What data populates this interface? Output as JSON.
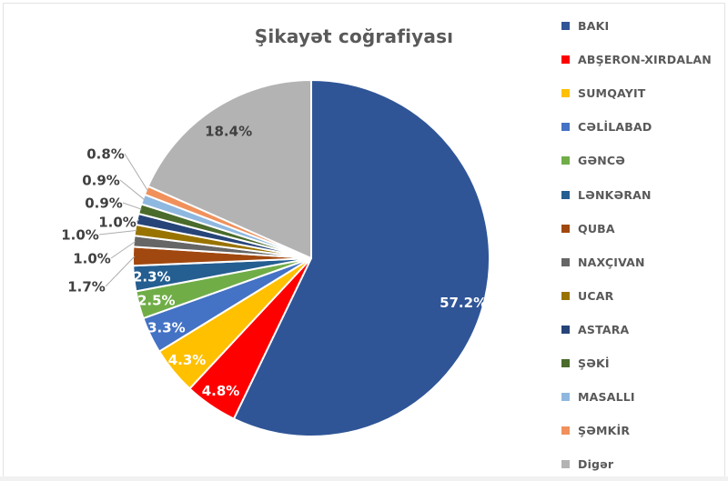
{
  "chart_data": {
    "type": "pie",
    "title": "Şikayət coğrafiyası",
    "legend_position": "right",
    "value_format": "percent-one-decimal",
    "direction": "clockwise",
    "start_angle_deg": 0,
    "slices": [
      {
        "label": "BAKI",
        "value": 57.2,
        "color": "#2F5597",
        "label_placement": "inside"
      },
      {
        "label": "ABŞERON-XIRDALAN",
        "value": 4.8,
        "color": "#FF0000",
        "label_placement": "inside"
      },
      {
        "label": "SUMQAYIT",
        "value": 4.3,
        "color": "#FFC000",
        "label_placement": "inside"
      },
      {
        "label": "CƏLİLABAD",
        "value": 3.3,
        "color": "#4472C4",
        "label_placement": "inside"
      },
      {
        "label": "GƏNCƏ",
        "value": 2.5,
        "color": "#70AD47",
        "label_placement": "inside"
      },
      {
        "label": "LƏNKƏRAN",
        "value": 2.3,
        "color": "#255E91",
        "label_placement": "inside"
      },
      {
        "label": "QUBA",
        "value": 1.7,
        "color": "#A0480F",
        "label_placement": "outside"
      },
      {
        "label": "NAXÇIVAN",
        "value": 1.0,
        "color": "#666666",
        "label_placement": "outside"
      },
      {
        "label": "UCAR",
        "value": 1.0,
        "color": "#997300",
        "label_placement": "outside"
      },
      {
        "label": "ASTARA",
        "value": 1.0,
        "color": "#264478",
        "label_placement": "outside"
      },
      {
        "label": "ŞƏKİ",
        "value": 0.9,
        "color": "#4A6B2B",
        "label_placement": "outside"
      },
      {
        "label": "MASALLI",
        "value": 0.9,
        "color": "#8FB8E0",
        "label_placement": "outside"
      },
      {
        "label": "ŞƏMKİR",
        "value": 0.8,
        "color": "#F0915C",
        "label_placement": "outside"
      },
      {
        "label": "Digər",
        "value": 18.4,
        "color": "#B3B3B3",
        "label_placement": "inside"
      }
    ],
    "visible_value_labels": [
      "57.2%",
      "4.8%",
      "4.3%",
      "3.3%",
      "2.5%",
      "2.3%",
      "1.7%",
      "1.0%",
      "1.0%",
      "1.0%",
      "0.9%",
      "0.9%",
      "0.8%",
      "18.4%"
    ]
  },
  "text": {
    "title_color": "#595959",
    "legend_color": "#595959",
    "outside_label_color": "#404040",
    "inside_label_color": "#FFFFFF",
    "digar_label_color": "#404040",
    "leader_line_color": "#ADADAD",
    "slice_border_color": "#FFFFFF"
  }
}
